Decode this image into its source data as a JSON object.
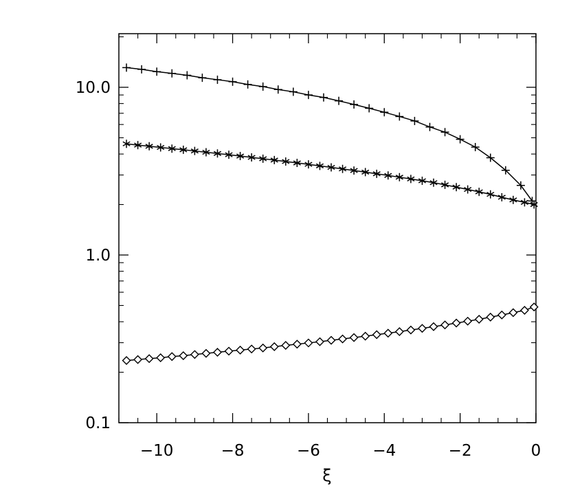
{
  "chart_data": {
    "type": "line",
    "title": "",
    "xlabel": "ξ",
    "ylabel": "",
    "xlim": [
      -11,
      0
    ],
    "ylim": [
      0.1,
      20
    ],
    "yscale": "log",
    "grid": false,
    "legend": "none",
    "x_ticks": [
      {
        "value": -10,
        "label": "−10"
      },
      {
        "value": -8,
        "label": "−8"
      },
      {
        "value": -6,
        "label": "−6"
      },
      {
        "value": -4,
        "label": "−4"
      },
      {
        "value": -2,
        "label": "−2"
      },
      {
        "value": 0,
        "label": "0"
      }
    ],
    "y_ticks": [
      {
        "value": 0.1,
        "label": "0.1"
      },
      {
        "value": 1.0,
        "label": "1.0"
      },
      {
        "value": 10.0,
        "label": "10.0"
      }
    ],
    "series": [
      {
        "marker": "plus",
        "x": [
          -10.8,
          -10.4,
          -10.0,
          -9.6,
          -9.2,
          -8.8,
          -8.4,
          -8.0,
          -7.6,
          -7.2,
          -6.8,
          -6.4,
          -6.0,
          -5.6,
          -5.2,
          -4.8,
          -4.4,
          -4.0,
          -3.6,
          -3.2,
          -2.8,
          -2.4,
          -2.0,
          -1.6,
          -1.2,
          -0.8,
          -0.4,
          -0.1
        ],
        "values": [
          13.1,
          12.8,
          12.4,
          12.1,
          11.8,
          11.4,
          11.1,
          10.8,
          10.4,
          10.1,
          9.7,
          9.4,
          9.0,
          8.7,
          8.3,
          7.9,
          7.5,
          7.1,
          6.7,
          6.3,
          5.8,
          5.4,
          4.9,
          4.4,
          3.8,
          3.2,
          2.6,
          2.1
        ]
      },
      {
        "marker": "asterisk",
        "x": [
          -10.8,
          -10.5,
          -10.2,
          -9.9,
          -9.6,
          -9.3,
          -9.0,
          -8.7,
          -8.4,
          -8.1,
          -7.8,
          -7.5,
          -7.2,
          -6.9,
          -6.6,
          -6.3,
          -6.0,
          -5.7,
          -5.4,
          -5.1,
          -4.8,
          -4.5,
          -4.2,
          -3.9,
          -3.6,
          -3.3,
          -3.0,
          -2.7,
          -2.4,
          -2.1,
          -1.8,
          -1.5,
          -1.2,
          -0.9,
          -0.6,
          -0.3,
          -0.05
        ],
        "values": [
          4.6,
          4.52,
          4.45,
          4.38,
          4.31,
          4.24,
          4.17,
          4.1,
          4.03,
          3.96,
          3.89,
          3.82,
          3.75,
          3.68,
          3.61,
          3.54,
          3.47,
          3.4,
          3.33,
          3.26,
          3.19,
          3.12,
          3.05,
          2.98,
          2.91,
          2.84,
          2.77,
          2.7,
          2.62,
          2.54,
          2.46,
          2.38,
          2.3,
          2.21,
          2.13,
          2.06,
          2.0
        ]
      },
      {
        "marker": "diamond",
        "x": [
          -10.8,
          -10.5,
          -10.2,
          -9.9,
          -9.6,
          -9.3,
          -9.0,
          -8.7,
          -8.4,
          -8.1,
          -7.8,
          -7.5,
          -7.2,
          -6.9,
          -6.6,
          -6.3,
          -6.0,
          -5.7,
          -5.4,
          -5.1,
          -4.8,
          -4.5,
          -4.2,
          -3.9,
          -3.6,
          -3.3,
          -3.0,
          -2.7,
          -2.4,
          -2.1,
          -1.8,
          -1.5,
          -1.2,
          -0.9,
          -0.6,
          -0.3,
          -0.05
        ],
        "values": [
          0.235,
          0.238,
          0.241,
          0.244,
          0.248,
          0.251,
          0.255,
          0.259,
          0.263,
          0.267,
          0.271,
          0.275,
          0.279,
          0.284,
          0.289,
          0.294,
          0.299,
          0.304,
          0.31,
          0.316,
          0.322,
          0.328,
          0.335,
          0.342,
          0.349,
          0.357,
          0.365,
          0.374,
          0.383,
          0.393,
          0.403,
          0.414,
          0.426,
          0.439,
          0.453,
          0.468,
          0.49
        ]
      }
    ]
  }
}
